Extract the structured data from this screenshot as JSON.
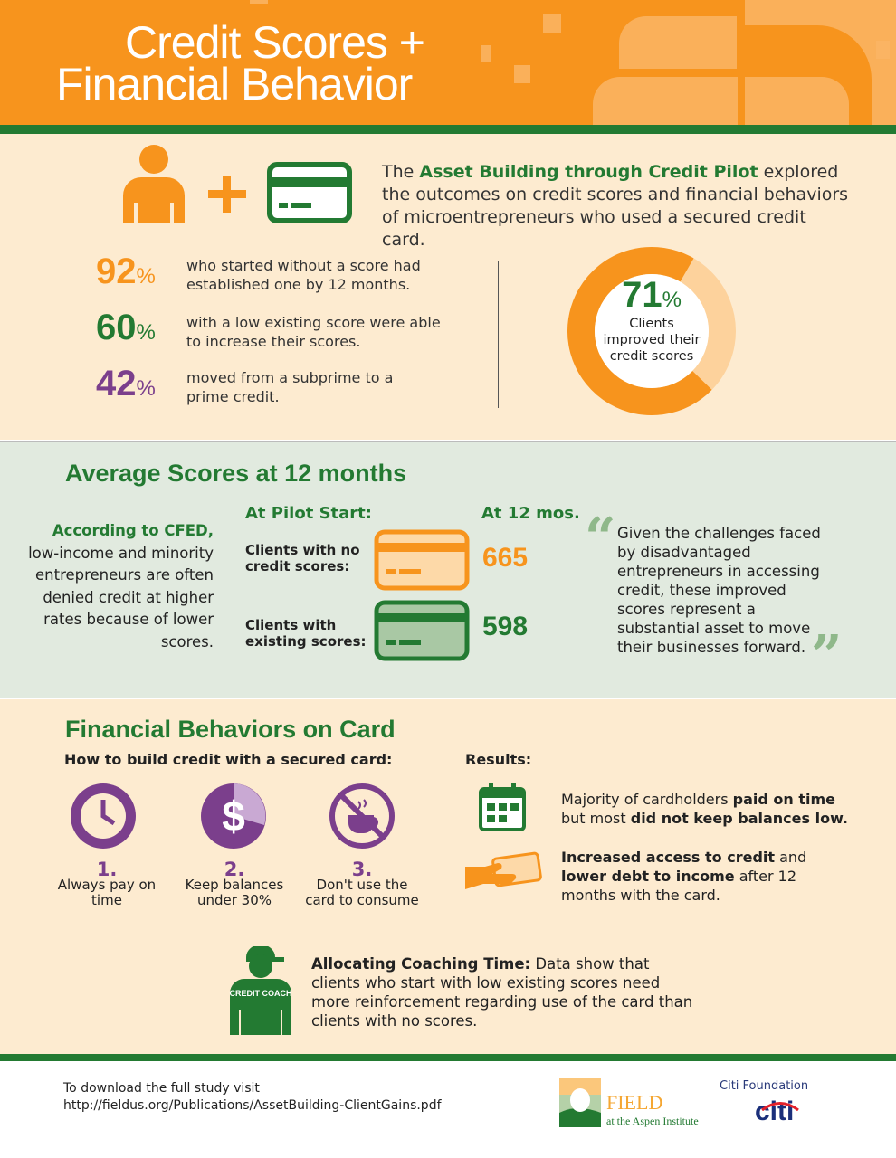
{
  "header": {
    "title_line1": "Credit Scores +",
    "title_line2": "Financial Behavior"
  },
  "intro": {
    "prefix": "The ",
    "highlight": "Asset Building through Credit Pilot",
    "suffix": " explored the outcomes on credit scores and financial behaviors of microentrepreneurs who used a secured credit card."
  },
  "stats": [
    {
      "value": "92",
      "unit": "%",
      "text": "who started without a score had established one by 12 months.",
      "color": "#f7941d"
    },
    {
      "value": "60",
      "unit": "%",
      "text": "with a low existing score were able to increase their scores.",
      "color": "#237a32"
    },
    {
      "value": "42",
      "unit": "%",
      "text": "moved from a subprime to a prime credit.",
      "color": "#7b3f8c"
    }
  ],
  "donut": {
    "value": "71",
    "unit": "%",
    "percent": 71,
    "caption": "Clients improved their credit scores",
    "color": "#f7941d",
    "rest_color": "#fdd29c"
  },
  "scores": {
    "title": "Average Scores at 12 months",
    "cfed_lead": "According to CFED,",
    "cfed_text": "low-income and minority entrepreneurs are often denied credit at higher rates because of lower scores.",
    "col_start": "At Pilot Start:",
    "col_end": "At 12 mos.",
    "rows": [
      {
        "label": "Clients with no credit scores:",
        "value": "665",
        "color": "#f7941d"
      },
      {
        "label": "Clients with existing scores:",
        "value": "598",
        "color": "#237a32"
      }
    ],
    "quote": "Given the challenges faced by disadvantaged entrepreneurs in accessing credit, these improved scores represent a substantial asset to move their businesses forward."
  },
  "behaviors": {
    "title": "Financial Behaviors on Card",
    "how_title": "How to build credit with a secured card:",
    "steps": [
      {
        "num": "1.",
        "text": "Always pay on time",
        "icon": "clock-icon"
      },
      {
        "num": "2.",
        "text": "Keep balances under 30%",
        "icon": "dollar-icon"
      },
      {
        "num": "3.",
        "text": "Don't use the card to consume",
        "icon": "no-coffee-icon"
      }
    ],
    "results_title": "Results:",
    "results": [
      {
        "icon": "calendar-icon",
        "parts": [
          "Majority of cardholders ",
          "paid on time",
          " but most ",
          "did not keep balances low."
        ]
      },
      {
        "icon": "hand-card-icon",
        "parts": [
          "Increased access to credit",
          " and ",
          "lower debt to income",
          " after 12 months with the card."
        ]
      }
    ],
    "coach_badge": "CREDIT COACH",
    "coach_lead": "Allocating Coaching Time:",
    "coach_text": " Data show that clients who start with low existing scores need more reinforcement regarding use of the card than clients with no scores."
  },
  "footer": {
    "text": "To download the full study visit http://fieldus.org/Publications/AssetBuilding-ClientGains.pdf",
    "field_logo": "FIELD",
    "field_sub": "at the Aspen Institute",
    "citi_foundation": "Citi Foundation",
    "citi_logo": "citi"
  },
  "colors": {
    "orange": "#f7941d",
    "green": "#237a32",
    "purple": "#7b3f8c",
    "beige": "#fdebd0",
    "sage": "#e1eadf"
  }
}
